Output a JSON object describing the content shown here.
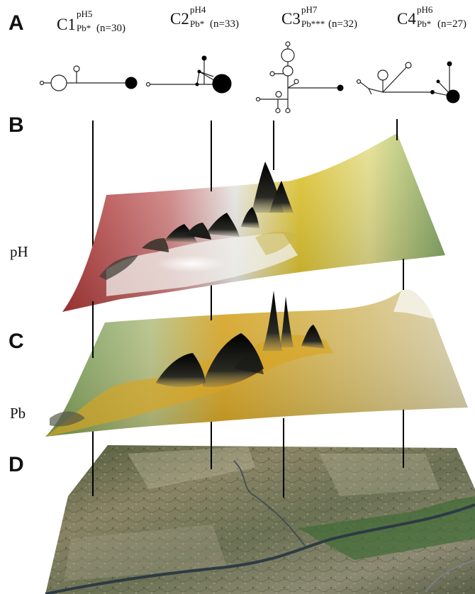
{
  "panels": {
    "a": "A",
    "b": "B",
    "c": "C",
    "d": "D"
  },
  "layers": {
    "ph_label": "pH",
    "pb_label": "Pb"
  },
  "clusters": [
    {
      "name": "C1",
      "sup": "pH5",
      "sub": "Pb*",
      "n": "(n=30)"
    },
    {
      "name": "C2",
      "sup": "pH4",
      "sub": "Pb*",
      "n": "(n=33)"
    },
    {
      "name": "C3",
      "sup": "pH7",
      "sub": "Pb***",
      "n": "(n=32)"
    },
    {
      "name": "C4",
      "sup": "pH6",
      "sub": "Pb*",
      "n": "(n=27)"
    }
  ],
  "colors": {
    "ph_low": "#b83a3a",
    "ph_neutral": "#f1f1ee",
    "ph_mid": "#e3c72a",
    "ph_high": "#7fa660",
    "pb_low": "#6d9a58",
    "pb_high": "#d9a521",
    "peak": "#111111",
    "terrain": "#6e6f54",
    "river": "#2e3a44"
  }
}
